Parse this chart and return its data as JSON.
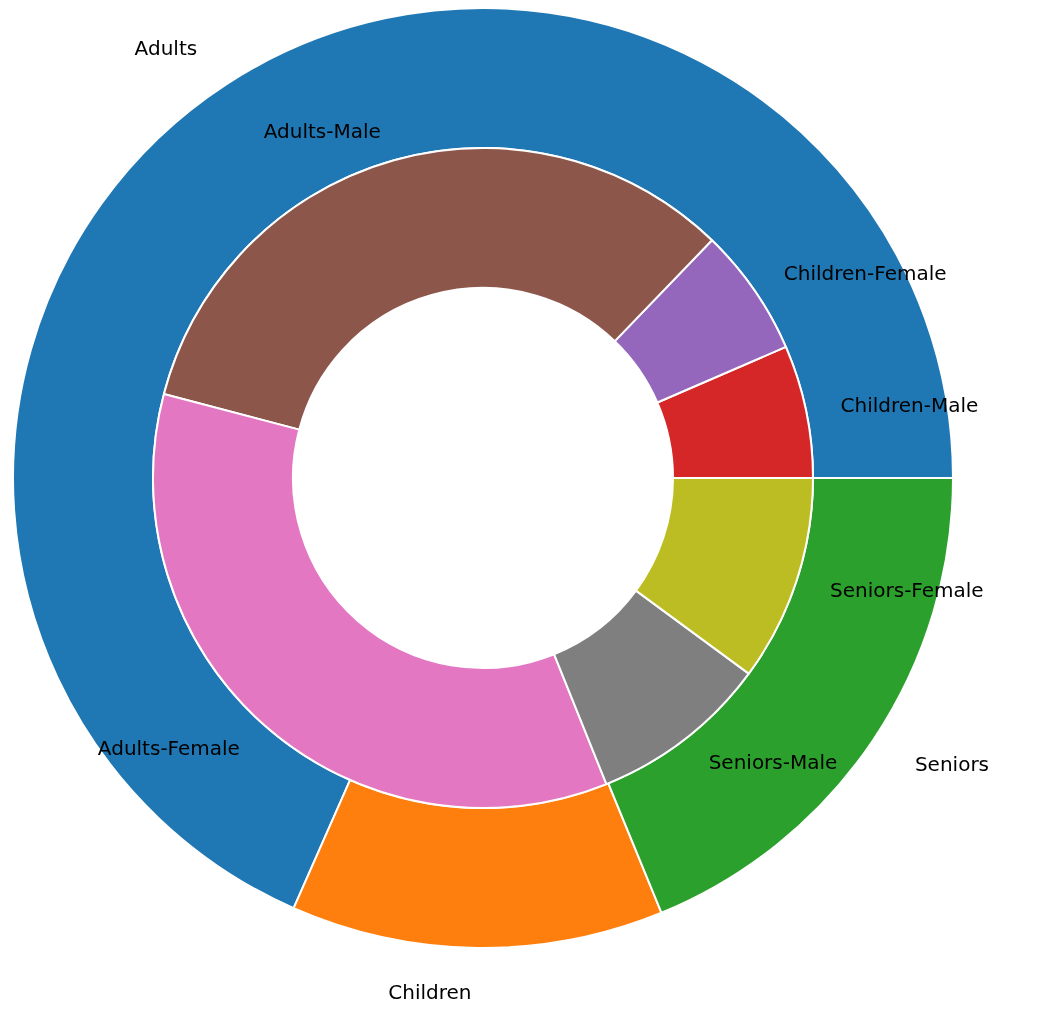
{
  "chart_data": [
    {
      "type": "donut",
      "categories": [
        "Adults",
        "Children",
        "Seniors"
      ],
      "values": [
        68.4,
        12.8,
        18.8
      ],
      "colors": [
        "#1f77b4",
        "#ff7f0e",
        "#2ca02c"
      ]
    },
    {
      "type": "donut",
      "categories": [
        "Children-Male",
        "Children-Female",
        "Adults-Male",
        "Adults-Female",
        "Seniors-Male",
        "Seniors-Female"
      ],
      "values": [
        6.5,
        6.3,
        33.1,
        35.2,
        8.8,
        10.1
      ],
      "colors": [
        "#d62728",
        "#9467bd",
        "#8c564b",
        "#e377c2",
        "#7f7f7f",
        "#bcbd22"
      ]
    }
  ]
}
